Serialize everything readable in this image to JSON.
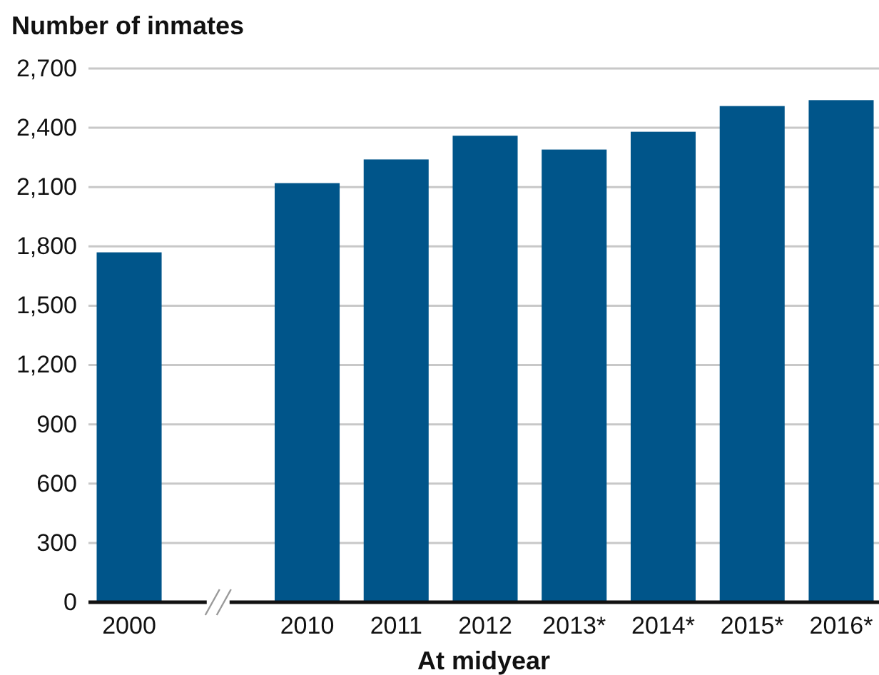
{
  "chart_data": {
    "type": "bar",
    "ylabel": "Number of inmates",
    "xlabel": "At midyear",
    "categories": [
      "2000",
      null,
      "2010",
      "2011",
      "2012",
      "2013*",
      "2014*",
      "2015*",
      "2016*"
    ],
    "values": [
      1770,
      null,
      2120,
      2240,
      2360,
      2290,
      2380,
      2510,
      2540
    ],
    "color": "#00558a",
    "ylim": [
      0,
      2700
    ],
    "yticks": [
      0,
      {
        "value": 300,
        "label": "300"
      },
      {
        "value": 600,
        "label": "600"
      },
      {
        "value": 900,
        "label": "900"
      },
      {
        "value": 1200,
        "label": "1,200"
      },
      {
        "value": 1500,
        "label": "1,500"
      },
      {
        "value": 1800,
        "label": "1,800"
      },
      {
        "value": 2100,
        "label": "2,100"
      },
      {
        "value": 2400,
        "label": "2,400"
      },
      {
        "value": 2700,
        "label": "2,700"
      }
    ],
    "grid": "y"
  }
}
